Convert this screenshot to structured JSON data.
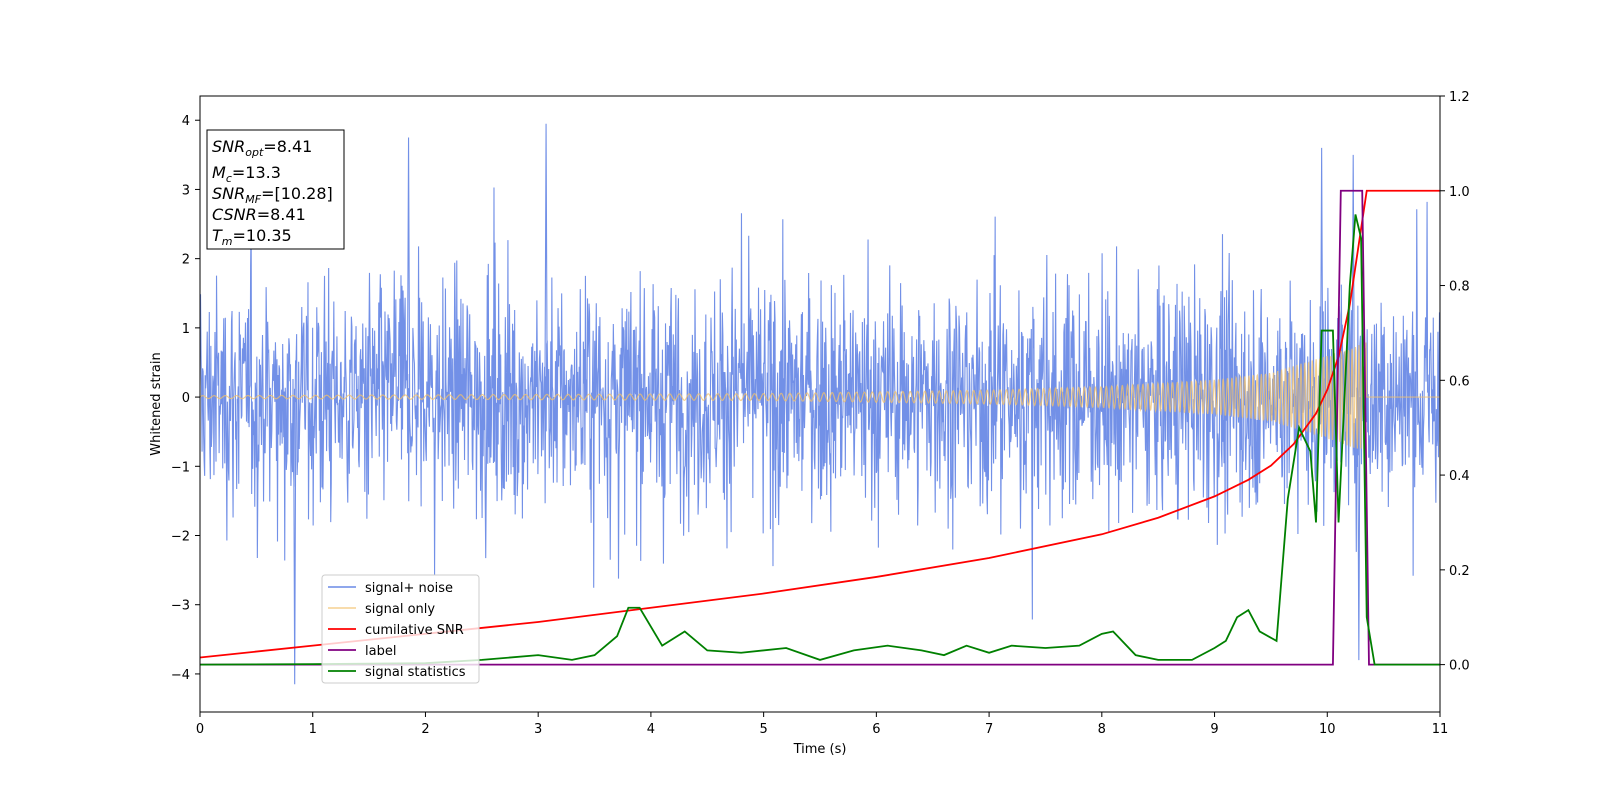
{
  "chart_data": {
    "type": "line",
    "xlabel": "Time (s)",
    "ylabel": "Whitened strain",
    "xlim": [
      0,
      11
    ],
    "ylim": [
      -4.55,
      4.35
    ],
    "y2lim": [
      -0.1,
      1.2
    ],
    "x_ticks": [
      0,
      1,
      2,
      3,
      4,
      5,
      6,
      7,
      8,
      9,
      10,
      11
    ],
    "x_tick_labels": [
      "0",
      "1",
      "2",
      "3",
      "4",
      "5",
      "6",
      "7",
      "8",
      "9",
      "10",
      "11"
    ],
    "y_ticks": [
      -4,
      -3,
      -2,
      -1,
      0,
      1,
      2,
      3,
      4
    ],
    "y_tick_labels": [
      "−4",
      "−3",
      "−2",
      "−1",
      "0",
      "1",
      "2",
      "3",
      "4"
    ],
    "y2_ticks": [
      0.0,
      0.2,
      0.4,
      0.6,
      0.8,
      1.0,
      1.2
    ],
    "y2_tick_labels": [
      "0.0",
      "0.2",
      "0.4",
      "0.6",
      "0.8",
      "1.0",
      "1.2"
    ],
    "grid": false,
    "legend_position": "lower-left",
    "info_box": [
      {
        "main": "SNR",
        "sub": "opt",
        "value": "=8.41"
      },
      {
        "main": "M",
        "sub": "c",
        "value": "=13.3"
      },
      {
        "main": "SNR",
        "sub": "MF",
        "value": "=[10.28]"
      },
      {
        "main": "CSNR",
        "sub": "",
        "value": "=8.41"
      },
      {
        "main": "T",
        "sub": "m",
        "value": "=10.35"
      }
    ],
    "series": [
      {
        "name": "signal+ noise",
        "axis": "left",
        "color": "#6a8ae6",
        "kind": "noise_band",
        "x_range": [
          0,
          11
        ],
        "typical_amplitude": 1.6,
        "peaks": [
          [
            1.85,
            3.75
          ],
          [
            3.07,
            3.95
          ],
          [
            9.95,
            3.6
          ],
          [
            10.23,
            3.5
          ],
          [
            0.84,
            -4.15
          ],
          [
            10.28,
            -3.8
          ]
        ]
      },
      {
        "name": "signal only",
        "axis": "left",
        "color": "#f3c26b",
        "kind": "chirp",
        "x_range": [
          0,
          10.35
        ],
        "envelope": [
          [
            0,
            0.02
          ],
          [
            5,
            0.05
          ],
          [
            7,
            0.1
          ],
          [
            8,
            0.15
          ],
          [
            9,
            0.25
          ],
          [
            9.5,
            0.35
          ],
          [
            10,
            0.6
          ],
          [
            10.35,
            0.8
          ]
        ]
      },
      {
        "name": "cumilative SNR",
        "axis": "right",
        "color": "#ff0000",
        "x": [
          0,
          1,
          2,
          3,
          4,
          5,
          6,
          7,
          8,
          8.5,
          9,
          9.3,
          9.5,
          9.7,
          9.9,
          10.0,
          10.1,
          10.2,
          10.3,
          10.35,
          11
        ],
        "values": [
          0.015,
          0.04,
          0.065,
          0.09,
          0.12,
          0.15,
          0.185,
          0.225,
          0.275,
          0.31,
          0.355,
          0.39,
          0.42,
          0.465,
          0.53,
          0.58,
          0.65,
          0.76,
          0.92,
          1.0,
          1.0
        ]
      },
      {
        "name": "label",
        "axis": "right",
        "color": "#800080",
        "x": [
          0,
          10.05,
          10.12,
          10.31,
          10.37,
          11
        ],
        "values": [
          0,
          0,
          1,
          1,
          0,
          0
        ]
      },
      {
        "name": "signal statistics",
        "axis": "right",
        "color": "#008000",
        "x": [
          0,
          1,
          2,
          2.5,
          3,
          3.3,
          3.5,
          3.7,
          3.8,
          3.9,
          4.1,
          4.3,
          4.5,
          4.8,
          5.2,
          5.5,
          5.8,
          6.1,
          6.4,
          6.6,
          6.8,
          7.0,
          7.2,
          7.5,
          7.8,
          8.0,
          8.1,
          8.3,
          8.5,
          8.8,
          9.0,
          9.1,
          9.2,
          9.3,
          9.4,
          9.55,
          9.65,
          9.75,
          9.85,
          9.9,
          9.95,
          10.05,
          10.1,
          10.2,
          10.25,
          10.3,
          10.35,
          10.42,
          11
        ],
        "values": [
          0.0,
          0.001,
          0.003,
          0.01,
          0.02,
          0.01,
          0.02,
          0.06,
          0.12,
          0.12,
          0.04,
          0.07,
          0.03,
          0.025,
          0.035,
          0.01,
          0.03,
          0.04,
          0.03,
          0.02,
          0.04,
          0.025,
          0.04,
          0.035,
          0.04,
          0.065,
          0.07,
          0.02,
          0.01,
          0.01,
          0.035,
          0.05,
          0.1,
          0.115,
          0.07,
          0.05,
          0.35,
          0.5,
          0.45,
          0.3,
          0.705,
          0.705,
          0.3,
          0.8,
          0.95,
          0.9,
          0.1,
          0.0,
          0.0
        ]
      }
    ]
  }
}
